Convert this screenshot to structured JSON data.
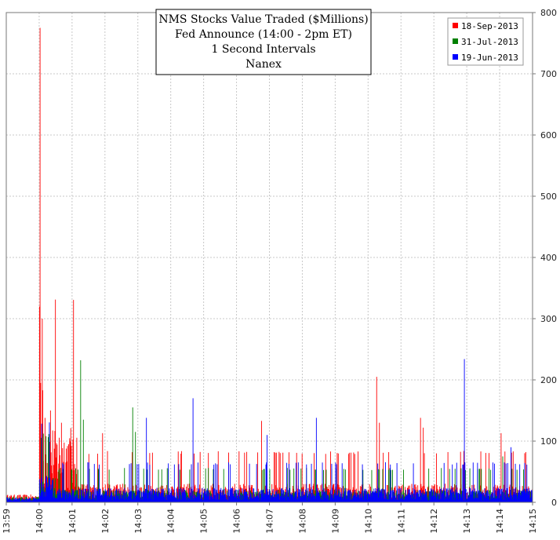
{
  "chart_data": {
    "type": "bar",
    "title_lines": [
      "NMS Stocks Value Traded ($Millions)",
      "Fed Announce (14:00 - 2pm ET)",
      "1 Second Intervals",
      "Nanex"
    ],
    "xlabel": "",
    "ylabel": "",
    "x_ticks": [
      "13:59",
      "14:00",
      "14:01",
      "14:02",
      "14:03",
      "14:04",
      "14:05",
      "14:06",
      "14:07",
      "14:08",
      "14:09",
      "14:10",
      "14:11",
      "14:12",
      "14:13",
      "14:14",
      "14:15"
    ],
    "y_ticks": [
      0,
      100,
      200,
      300,
      400,
      500,
      600,
      700,
      800
    ],
    "ylim": [
      0,
      800
    ],
    "y_axis_side": "right",
    "grid": true,
    "legend_position": "top-right",
    "series": [
      {
        "name": "18-Sep-2013",
        "color": "#ff0000",
        "baseline_before": 8,
        "baseline_after": 18,
        "peaks": [
          {
            "t": "14:00:01",
            "v": 775
          },
          {
            "t": "14:00:02",
            "v": 195
          },
          {
            "t": "14:00:05",
            "v": 300
          },
          {
            "t": "14:00:06",
            "v": 183
          },
          {
            "t": "14:00:10",
            "v": 138
          },
          {
            "t": "14:00:20",
            "v": 150
          },
          {
            "t": "14:00:40",
            "v": 130
          },
          {
            "t": "14:01:55",
            "v": 113
          },
          {
            "t": "14:06:45",
            "v": 133
          },
          {
            "t": "14:10:15",
            "v": 205
          },
          {
            "t": "14:10:20",
            "v": 130
          },
          {
            "t": "14:11:35",
            "v": 138
          },
          {
            "t": "14:11:40",
            "v": 122
          },
          {
            "t": "14:14:02",
            "v": 113
          }
        ]
      },
      {
        "name": "31-Jul-2013",
        "color": "#008000",
        "baseline_before": 6,
        "baseline_after": 12,
        "peaks": [
          {
            "t": "14:01:15",
            "v": 232
          },
          {
            "t": "14:01:20",
            "v": 135
          },
          {
            "t": "14:02:50",
            "v": 155
          },
          {
            "t": "14:02:55",
            "v": 115
          },
          {
            "t": "14:14:05",
            "v": 75
          }
        ]
      },
      {
        "name": "19-Jun-2013",
        "color": "#0000ff",
        "baseline_before": 5,
        "baseline_after": 14,
        "peaks": [
          {
            "t": "14:03:15",
            "v": 138
          },
          {
            "t": "14:04:40",
            "v": 170
          },
          {
            "t": "14:06:55",
            "v": 110
          },
          {
            "t": "14:08:25",
            "v": 138
          },
          {
            "t": "14:12:55",
            "v": 234
          },
          {
            "t": "14:14:20",
            "v": 90
          }
        ]
      }
    ]
  },
  "colors": {
    "grid": "#c8c8c8",
    "axis": "#555555",
    "title_box_border": "#000000"
  }
}
